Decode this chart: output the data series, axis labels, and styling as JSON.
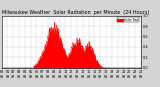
{
  "bg_color": "#d4d4d4",
  "plot_bg_color": "#ffffff",
  "fill_color": "#ff0000",
  "line_color": "#ff0000",
  "grid_color": "#aaaaaa",
  "grid_linestyle": "--",
  "legend_color": "#ff0000",
  "xlim": [
    0,
    1440
  ],
  "ylim_min": 0,
  "title_fontsize": 3.5,
  "tick_fontsize": 2.5,
  "title_text": "Milwaukee Weather  Solar Radiation  per Minute  (24 Hours)",
  "legend_label": "Solar Rad"
}
